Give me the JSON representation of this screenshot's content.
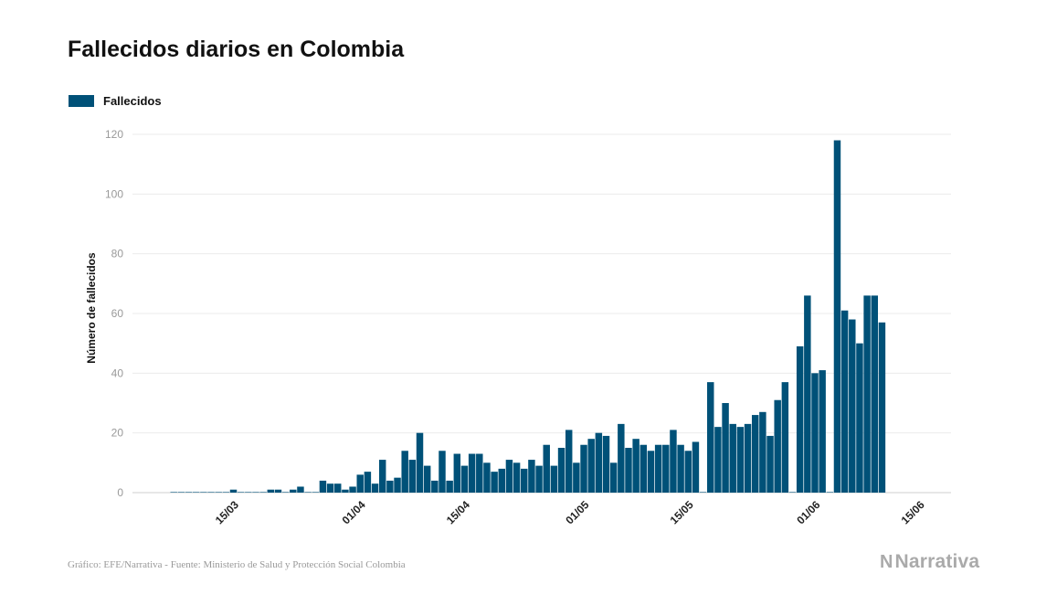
{
  "chart_data": {
    "type": "bar",
    "title": "Fallecidos diarios en Colombia",
    "ylabel": "Número de fallecidos",
    "xlabel": "",
    "ylim": [
      0,
      120
    ],
    "yticks": [
      0,
      20,
      40,
      60,
      80,
      100,
      120
    ],
    "grid": true,
    "legend_position": "top-left",
    "x_start": "2020-03-07",
    "xticks": [
      {
        "label": "15/03",
        "date": "2020-03-15"
      },
      {
        "label": "01/04",
        "date": "2020-04-01"
      },
      {
        "label": "15/04",
        "date": "2020-04-15"
      },
      {
        "label": "01/05",
        "date": "2020-05-01"
      },
      {
        "label": "15/05",
        "date": "2020-05-15"
      },
      {
        "label": "01/06",
        "date": "2020-06-01"
      },
      {
        "label": "15/06",
        "date": "2020-06-15"
      }
    ],
    "series": [
      {
        "name": "Fallecidos",
        "color": "#005178",
        "values": [
          0,
          0,
          0,
          0,
          0,
          0,
          0,
          0,
          1,
          0,
          0,
          0,
          0,
          1,
          1,
          0,
          1,
          2,
          0,
          0,
          4,
          3,
          3,
          1,
          2,
          6,
          7,
          3,
          11,
          4,
          5,
          14,
          11,
          20,
          9,
          4,
          14,
          4,
          13,
          9,
          13,
          13,
          10,
          7,
          8,
          11,
          10,
          8,
          11,
          9,
          16,
          9,
          15,
          21,
          10,
          16,
          18,
          20,
          19,
          10,
          23,
          15,
          18,
          16,
          14,
          16,
          16,
          21,
          16,
          14,
          17,
          0,
          37,
          22,
          30,
          23,
          22,
          23,
          26,
          27,
          19,
          31,
          37,
          0,
          49,
          66,
          40,
          41,
          0,
          118,
          61,
          58,
          50,
          66,
          66,
          57
        ]
      }
    ]
  },
  "source": "Gráfico: EFE/Narrativa - Fuente: Ministerio de Salud y Protección Social Colombia",
  "logo": {
    "mark": "N",
    "text": "Narrativa"
  }
}
